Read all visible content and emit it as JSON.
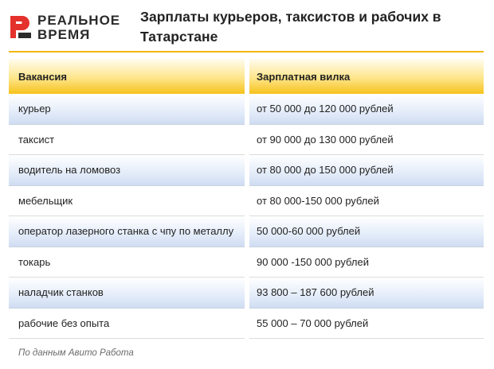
{
  "logo": {
    "line1": "РЕАЛЬНОЕ",
    "line2": "ВРЕМЯ",
    "brand_color": "#e4312b"
  },
  "title": "Зарплаты курьеров, таксистов и рабочих в Татарстане",
  "colors": {
    "accent": "#f2b705",
    "header_fill": "#fde58a",
    "row_shade": "#dce6f6"
  },
  "table": {
    "headers": [
      "Вакансия",
      "Зарплатная вилка"
    ],
    "rows": [
      [
        "курьер",
        "от 50 000 до 120 000 рублей"
      ],
      [
        "таксист",
        "от 90 000 до 130 000 рублей"
      ],
      [
        "водитель на ломовоз",
        "от 80 000 до 150 000 рублей"
      ],
      [
        "мебельщик",
        "от 80 000-150 000 рублей"
      ],
      [
        "оператор лазерного станка с чпу по металлу",
        "50 000-60 000 рублей"
      ],
      [
        "токарь",
        "90 000 -150 000 рублей"
      ],
      [
        "наладчик станков",
        "93 800 – 187 600 рублей"
      ],
      [
        "рабочие без опыта",
        "55 000 – 70 000 рублей"
      ]
    ]
  },
  "source": "По данным Авито Работа"
}
